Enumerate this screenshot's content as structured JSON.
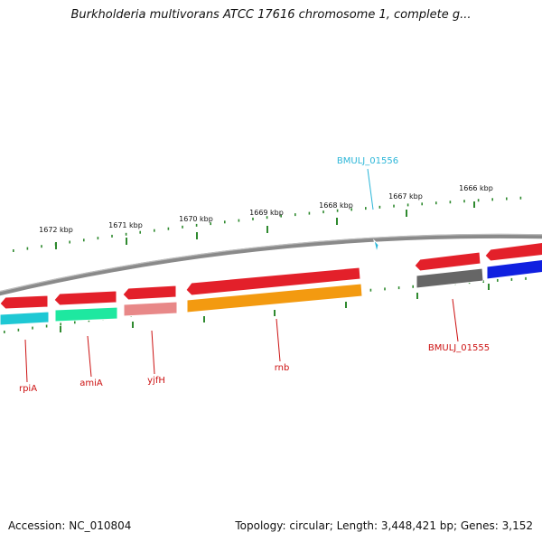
{
  "title": "Burkholderia multivorans ATCC 17616 chromosome 1, complete g...",
  "footer": {
    "accession": "Accession: NC_010804",
    "summary": "Topology: circular; Length: 3,448,421 bp; Genes: 3,152"
  },
  "colors": {
    "backbone": "#8a8a8a",
    "tick": "#2f8a2f",
    "label_red": "#cc1111",
    "label_cyan": "#2bb6d8"
  },
  "ticks": [
    {
      "label": "1666 kbp"
    },
    {
      "label": "1667 kbp"
    },
    {
      "label": "1668 kbp"
    },
    {
      "label": "1669 kbp"
    },
    {
      "label": "1670 kbp"
    },
    {
      "label": "1671 kbp"
    },
    {
      "label": "1672 kbp"
    }
  ],
  "genes": [
    {
      "name": "rpiA",
      "labelled": true,
      "color": "#e3202a",
      "cds_color": "#1ec8d4"
    },
    {
      "name": "amiA",
      "labelled": true,
      "color": "#e3202a",
      "cds_color": "#1ee8a0"
    },
    {
      "name": "yjfH",
      "labelled": true,
      "color": "#e3202a",
      "cds_color": "#e88888"
    },
    {
      "name": "rnb",
      "labelled": true,
      "color": "#e3202a",
      "cds_color": "#f39a10"
    },
    {
      "name": "BMULJ_01555",
      "labelled": true,
      "color": "#e3202a",
      "cds_color": "#666666"
    },
    {
      "name": "",
      "labelled": false,
      "color": "#e3202a",
      "cds_color": "#1020e0"
    },
    {
      "name": "BMULJ_01556",
      "labelled": true,
      "color": "#2bb6d8",
      "cds_color": ""
    }
  ]
}
